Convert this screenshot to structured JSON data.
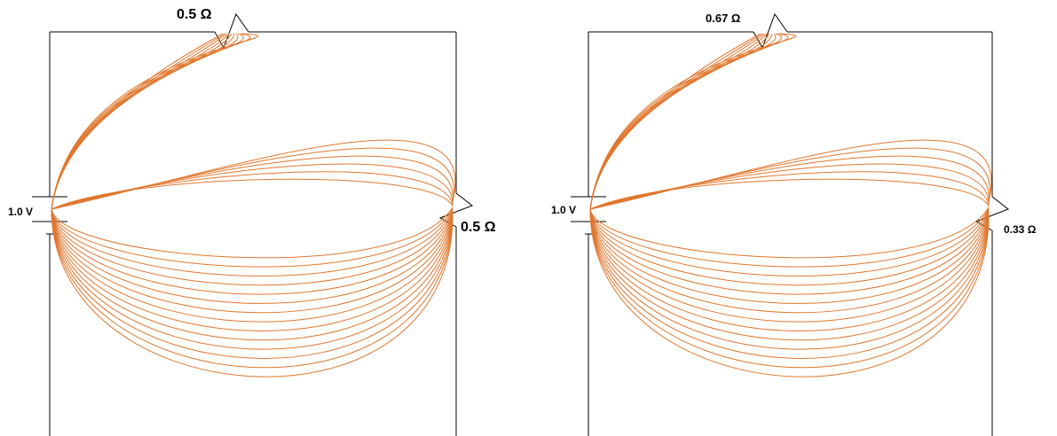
{
  "colors": {
    "field_lines": "#e0772f",
    "outline": "#000000",
    "background": "#ffffff"
  },
  "panels": [
    {
      "source_label": "1.0 V",
      "top_resistor_label": "0.5 Ω",
      "right_resistor_label": "0.5 Ω",
      "field_line_count": 30
    },
    {
      "source_label": "1.0 V",
      "top_resistor_label": "0.67 Ω",
      "right_resistor_label": "0.33 Ω",
      "field_line_count": 30
    }
  ]
}
